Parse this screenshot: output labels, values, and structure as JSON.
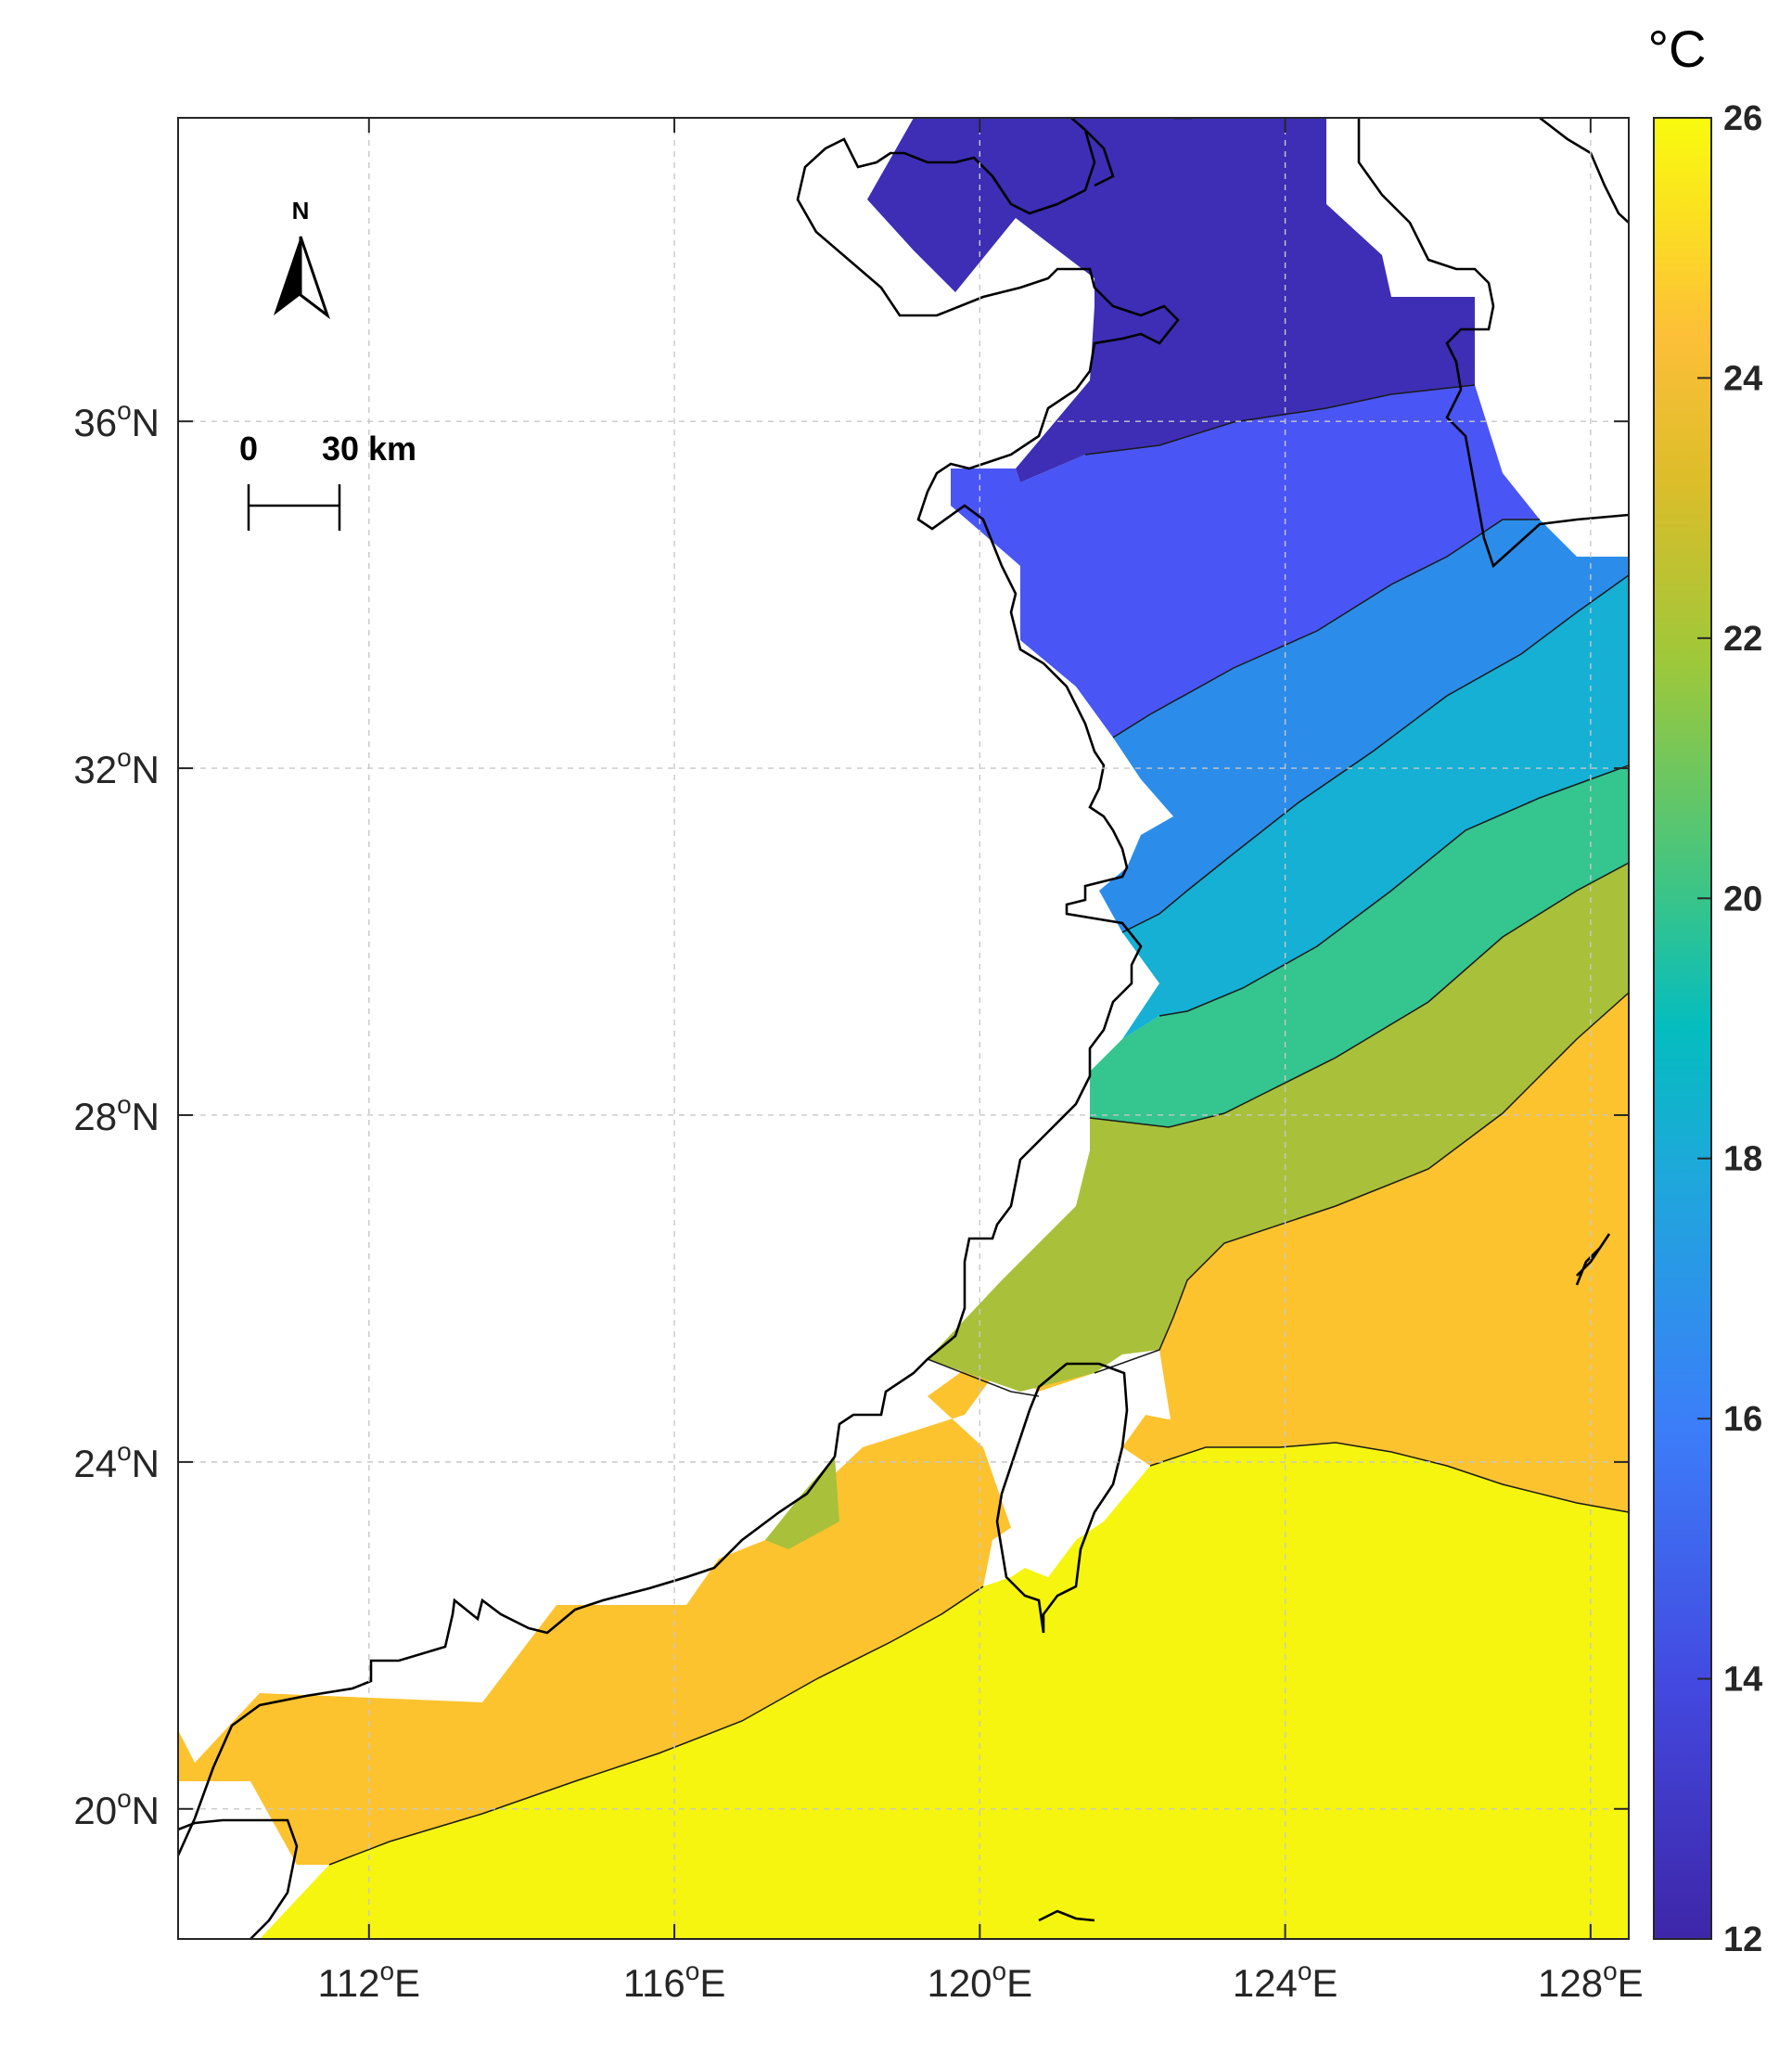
{
  "map": {
    "unit_label": "°C",
    "lon_ticks": [
      {
        "value": 112,
        "label": "112",
        "sup": "o",
        "suffix": "E"
      },
      {
        "value": 116,
        "label": "116",
        "sup": "o",
        "suffix": "E"
      },
      {
        "value": 120,
        "label": "120",
        "sup": "o",
        "suffix": "E"
      },
      {
        "value": 124,
        "label": "124",
        "sup": "o",
        "suffix": "E"
      },
      {
        "value": 128,
        "label": "128",
        "sup": "o",
        "suffix": "E"
      }
    ],
    "lat_ticks": [
      {
        "value": 36,
        "label": "36",
        "sup": "o",
        "suffix": "N"
      },
      {
        "value": 32,
        "label": "32",
        "sup": "o",
        "suffix": "N"
      },
      {
        "value": 28,
        "label": "28",
        "sup": "o",
        "suffix": "N"
      },
      {
        "value": 24,
        "label": "24",
        "sup": "o",
        "suffix": "N"
      },
      {
        "value": 20,
        "label": "20",
        "sup": "o",
        "suffix": "N"
      }
    ],
    "lon_range": [
      109.5,
      128.5
    ],
    "lat_range": [
      18.5,
      39.5
    ],
    "colorbar": {
      "ticks": [
        "12",
        "14",
        "16",
        "18",
        "20",
        "22",
        "24",
        "26"
      ],
      "range": [
        12,
        26
      ]
    },
    "north_arrow": {
      "label": "N"
    },
    "scale_bar": {
      "start_label": "0",
      "end_label": "30 km"
    },
    "colors": {
      "band_12_14": "#3d2eb5",
      "band_14_16": "#4a55f5",
      "band_16_18": "#2b8de9",
      "band_18_20": "#15b0d4",
      "band_20_22": "#35c58f",
      "band_22_24": "#a9c03a",
      "band_24_26": "#fcc32f",
      "band_26": "#f5f50f",
      "coastline": "#000000",
      "grid": "#bfbfbf"
    },
    "icons": [
      "north-arrow-icon",
      "scale-bar-icon"
    ]
  }
}
